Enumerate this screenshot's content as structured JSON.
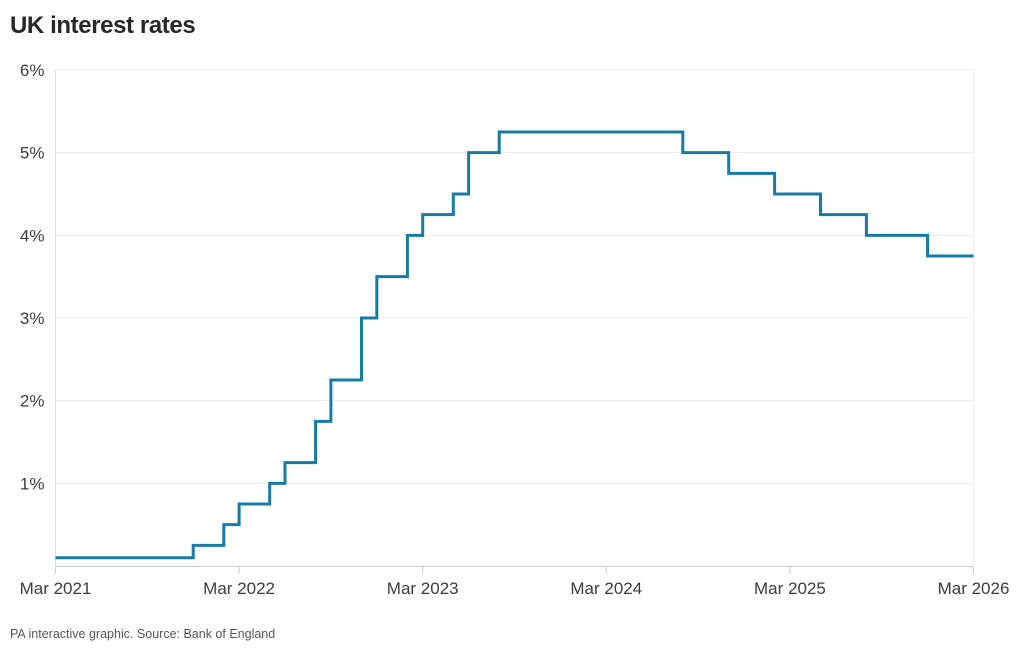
{
  "page": {
    "title": "UK interest rates",
    "footer": "PA interactive graphic. Source: Bank of England"
  },
  "colors": {
    "line": "#177CA4",
    "grid": "#ececec",
    "axis": "#cccccc",
    "border_left": "#e0e0e0",
    "border_right": "#efefef",
    "axis_text": "#3d3d3d",
    "title_text": "#282828",
    "footer_text": "#575757",
    "background": "#ffffff"
  },
  "chart_data": {
    "type": "line",
    "line_style": "step-after",
    "title": "UK interest rates",
    "xlabel": "",
    "ylabel": "",
    "grid": "horizontal",
    "legend": false,
    "x_axis": {
      "unit": "months since Mar 2021",
      "range_months": [
        0,
        60
      ],
      "ticks": [
        {
          "label": "Mar 2021",
          "month": 0
        },
        {
          "label": "Mar 2022",
          "month": 12
        },
        {
          "label": "Mar 2023",
          "month": 24
        },
        {
          "label": "Mar 2024",
          "month": 36
        },
        {
          "label": "Mar 2025",
          "month": 48
        },
        {
          "label": "Mar 2026",
          "month": 60
        }
      ]
    },
    "y_axis": {
      "unit": "percent",
      "range": [
        0,
        6
      ],
      "ticks": [
        {
          "label": "1%",
          "value": 1
        },
        {
          "label": "2%",
          "value": 2
        },
        {
          "label": "3%",
          "value": 3
        },
        {
          "label": "4%",
          "value": 4
        },
        {
          "label": "5%",
          "value": 5
        },
        {
          "label": "6%",
          "value": 6
        }
      ]
    },
    "series": [
      {
        "name": "UK interest rate (%)",
        "points": [
          {
            "date": "Mar 2021",
            "month": 0,
            "value": 0.1
          },
          {
            "date": "Dec 2021",
            "month": 9,
            "value": 0.25
          },
          {
            "date": "Feb 2022",
            "month": 11,
            "value": 0.5
          },
          {
            "date": "Mar 2022",
            "month": 12,
            "value": 0.75
          },
          {
            "date": "May 2022",
            "month": 14,
            "value": 1.0
          },
          {
            "date": "Jun 2022",
            "month": 15,
            "value": 1.25
          },
          {
            "date": "Aug 2022",
            "month": 17,
            "value": 1.75
          },
          {
            "date": "Sep 2022",
            "month": 18,
            "value": 2.25
          },
          {
            "date": "Nov 2022",
            "month": 20,
            "value": 3.0
          },
          {
            "date": "Dec 2022",
            "month": 21,
            "value": 3.5
          },
          {
            "date": "Feb 2023",
            "month": 23,
            "value": 4.0
          },
          {
            "date": "Mar 2023",
            "month": 24,
            "value": 4.25
          },
          {
            "date": "May 2023",
            "month": 26,
            "value": 4.5
          },
          {
            "date": "Jun 2023",
            "month": 27,
            "value": 5.0
          },
          {
            "date": "Aug 2023",
            "month": 29,
            "value": 5.25
          },
          {
            "date": "Aug 2024",
            "month": 41,
            "value": 5.0
          },
          {
            "date": "Nov 2024",
            "month": 44,
            "value": 4.75
          },
          {
            "date": "Feb 2025",
            "month": 47,
            "value": 4.5
          },
          {
            "date": "May 2025",
            "month": 50,
            "value": 4.25
          },
          {
            "date": "Aug 2025",
            "month": 53,
            "value": 4.0
          },
          {
            "date": "Dec 2025",
            "month": 57,
            "value": 3.75
          },
          {
            "date": "Mar 2026",
            "month": 60,
            "value": 3.75
          }
        ]
      }
    ]
  }
}
